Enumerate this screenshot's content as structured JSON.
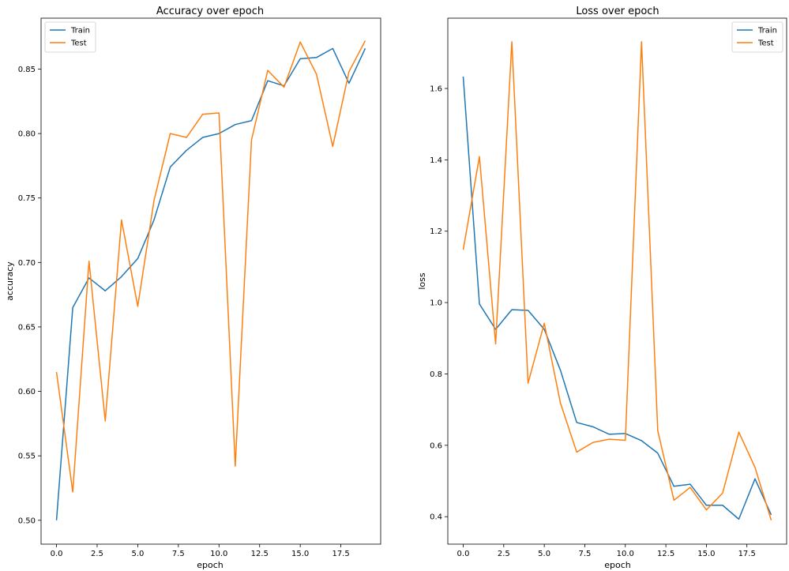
{
  "chart_data": [
    {
      "type": "line",
      "title": "Accuracy over epoch",
      "xlabel": "epoch",
      "ylabel": "accuracy",
      "xlim": [
        -0.95,
        19.95
      ],
      "ylim": [
        0.4815,
        0.8895
      ],
      "xticks": [
        0.0,
        2.5,
        5.0,
        7.5,
        10.0,
        12.5,
        15.0,
        17.5
      ],
      "xtick_labels": [
        "0.0",
        "2.5",
        "5.0",
        "7.5",
        "10.0",
        "12.5",
        "15.0",
        "17.5"
      ],
      "yticks": [
        0.5,
        0.55,
        0.6,
        0.65,
        0.7,
        0.75,
        0.8,
        0.85
      ],
      "ytick_labels": [
        "0.50",
        "0.55",
        "0.60",
        "0.65",
        "0.70",
        "0.75",
        "0.80",
        "0.85"
      ],
      "legend_position": "top-left",
      "grid": false,
      "x": [
        0,
        1,
        2,
        3,
        4,
        5,
        6,
        7,
        8,
        9,
        10,
        11,
        12,
        13,
        14,
        15,
        16,
        17,
        18,
        19
      ],
      "series": [
        {
          "name": "Train",
          "color": "#1f77b4",
          "values": [
            0.5,
            0.665,
            0.688,
            0.678,
            0.689,
            0.703,
            0.733,
            0.774,
            0.787,
            0.797,
            0.8,
            0.807,
            0.81,
            0.841,
            0.837,
            0.858,
            0.859,
            0.866,
            0.839,
            0.866
          ]
        },
        {
          "name": "Test",
          "color": "#ff7f0e",
          "values": [
            0.615,
            0.522,
            0.701,
            0.577,
            0.733,
            0.666,
            0.748,
            0.8,
            0.797,
            0.815,
            0.816,
            0.542,
            0.795,
            0.849,
            0.836,
            0.871,
            0.846,
            0.79,
            0.848,
            0.872
          ]
        }
      ]
    },
    {
      "type": "line",
      "title": "Loss over epoch",
      "xlabel": "epoch",
      "ylabel": "loss",
      "xlim": [
        -0.95,
        19.95
      ],
      "ylim": [
        0.323,
        1.797
      ],
      "xticks": [
        0.0,
        2.5,
        5.0,
        7.5,
        10.0,
        12.5,
        15.0,
        17.5
      ],
      "xtick_labels": [
        "0.0",
        "2.5",
        "5.0",
        "7.5",
        "10.0",
        "12.5",
        "15.0",
        "17.5"
      ],
      "yticks": [
        0.4,
        0.6,
        0.8,
        1.0,
        1.2,
        1.4,
        1.6
      ],
      "ytick_labels": [
        "0.4",
        "0.6",
        "0.8",
        "1.0",
        "1.2",
        "1.4",
        "1.6"
      ],
      "legend_position": "top-right",
      "grid": false,
      "x": [
        0,
        1,
        2,
        3,
        4,
        5,
        6,
        7,
        8,
        9,
        10,
        11,
        12,
        13,
        14,
        15,
        16,
        17,
        18,
        19
      ],
      "series": [
        {
          "name": "Train",
          "color": "#1f77b4",
          "values": [
            1.633,
            0.996,
            0.925,
            0.98,
            0.978,
            0.925,
            0.81,
            0.664,
            0.652,
            0.631,
            0.633,
            0.613,
            0.578,
            0.485,
            0.491,
            0.432,
            0.432,
            0.393,
            0.506,
            0.405
          ]
        },
        {
          "name": "Test",
          "color": "#ff7f0e",
          "values": [
            1.148,
            1.409,
            0.884,
            1.731,
            0.774,
            0.942,
            0.718,
            0.581,
            0.608,
            0.617,
            0.614,
            1.731,
            0.641,
            0.446,
            0.482,
            0.419,
            0.466,
            0.637,
            0.538,
            0.39
          ]
        }
      ]
    }
  ]
}
